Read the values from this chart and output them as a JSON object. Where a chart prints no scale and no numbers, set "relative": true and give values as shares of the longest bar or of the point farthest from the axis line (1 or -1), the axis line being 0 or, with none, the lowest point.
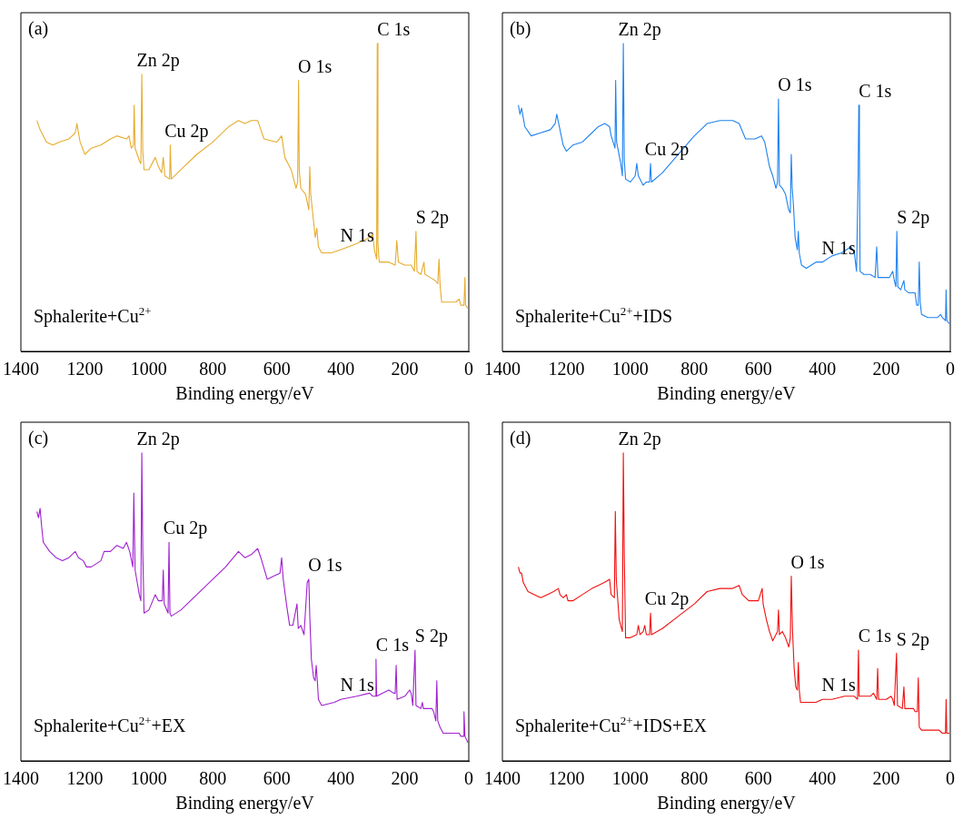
{
  "chart_data": [
    {
      "type": "line",
      "title": "(a)",
      "xlabel": "Binding energy/eV",
      "relative": true,
      "xlim": [
        1400,
        0
      ],
      "xticks": [
        1400,
        1200,
        1000,
        800,
        600,
        400,
        200,
        0
      ],
      "grid": false,
      "legend": false,
      "tick_labels": "x",
      "marker": "none",
      "line_style": "solid",
      "annotations": [
        {
          "text": "Zn 2p",
          "x": 1022,
          "y": 0.9
        },
        {
          "text": "Cu 2p",
          "x": 933,
          "y": 0.67
        },
        {
          "text": "O 1s",
          "x": 532,
          "y": 0.88
        },
        {
          "text": "C 1s",
          "x": 286,
          "y": 1.0
        },
        {
          "text": "N 1s",
          "x": 400,
          "y": 0.33
        },
        {
          "text": "S 2p",
          "x": 165,
          "y": 0.39
        },
        "Sphalerite+Cu$^{2+}$"
      ],
      "series": [
        {
          "color": "#e6ac2e",
          "x": [
            1350,
            1340,
            1320,
            1300,
            1280,
            1250,
            1230,
            1225,
            1215,
            1200,
            1180,
            1150,
            1120,
            1100,
            1070,
            1062,
            1055,
            1048,
            1046,
            1043,
            1030,
            1025,
            1022,
            1019,
            1015,
            1000,
            980,
            970,
            960,
            955,
            950,
            935,
            933,
            930,
            900,
            850,
            800,
            750,
            720,
            700,
            680,
            660,
            640,
            600,
            585,
            575,
            555,
            540,
            535,
            532,
            530,
            525,
            510,
            500,
            497,
            494,
            488,
            480,
            475,
            470,
            460,
            430,
            400,
            350,
            310,
            300,
            295,
            288,
            286,
            284,
            280,
            250,
            230,
            225,
            220,
            200,
            180,
            170,
            165,
            162,
            150,
            140,
            137,
            120,
            105,
            97,
            93,
            90,
            85,
            60,
            40,
            30,
            25,
            15,
            12,
            10,
            3
          ],
          "values": [
            0.75,
            0.72,
            0.68,
            0.67,
            0.68,
            0.69,
            0.71,
            0.74,
            0.68,
            0.64,
            0.66,
            0.67,
            0.69,
            0.7,
            0.69,
            0.7,
            0.66,
            0.67,
            0.8,
            0.66,
            0.62,
            0.61,
            0.9,
            0.65,
            0.59,
            0.59,
            0.63,
            0.6,
            0.58,
            0.63,
            0.57,
            0.56,
            0.67,
            0.56,
            0.59,
            0.64,
            0.68,
            0.73,
            0.75,
            0.74,
            0.75,
            0.75,
            0.69,
            0.68,
            0.7,
            0.63,
            0.59,
            0.53,
            0.55,
            0.88,
            0.59,
            0.53,
            0.51,
            0.46,
            0.6,
            0.51,
            0.45,
            0.37,
            0.4,
            0.34,
            0.32,
            0.32,
            0.33,
            0.35,
            0.37,
            0.38,
            0.33,
            0.3,
            1.0,
            0.35,
            0.29,
            0.29,
            0.28,
            0.36,
            0.29,
            0.28,
            0.28,
            0.26,
            0.39,
            0.26,
            0.25,
            0.29,
            0.25,
            0.24,
            0.23,
            0.22,
            0.3,
            0.22,
            0.16,
            0.16,
            0.16,
            0.17,
            0.15,
            0.15,
            0.24,
            0.15,
            0.14
          ]
        }
      ]
    },
    {
      "type": "line",
      "title": "(b)",
      "xlabel": "Binding energy/eV",
      "relative": true,
      "xlim": [
        1400,
        0
      ],
      "xticks": [
        1400,
        1200,
        1000,
        800,
        600,
        400,
        200,
        0
      ],
      "grid": false,
      "legend": false,
      "tick_labels": "x",
      "marker": "none",
      "line_style": "solid",
      "annotations": [
        {
          "text": "Zn 2p",
          "x": 1022,
          "y": 1.0
        },
        {
          "text": "Cu 2p",
          "x": 937,
          "y": 0.61
        },
        {
          "text": "O 1s",
          "x": 537,
          "y": 0.82
        },
        {
          "text": "C 1s",
          "x": 286,
          "y": 0.8
        },
        {
          "text": "N 1s",
          "x": 400,
          "y": 0.29
        },
        {
          "text": "S 2p",
          "x": 167,
          "y": 0.39
        },
        "Sphalerite+Cu$^{2+}$+IDS"
      ],
      "series": [
        {
          "color": "#1e82f0",
          "x": [
            1350,
            1345,
            1340,
            1330,
            1310,
            1280,
            1250,
            1235,
            1230,
            1220,
            1210,
            1200,
            1180,
            1150,
            1120,
            1100,
            1080,
            1065,
            1060,
            1048,
            1046,
            1043,
            1030,
            1025,
            1022,
            1019,
            1015,
            1000,
            985,
            980,
            975,
            960,
            950,
            940,
            937,
            934,
            900,
            850,
            800,
            760,
            720,
            680,
            660,
            640,
            610,
            590,
            580,
            565,
            555,
            545,
            540,
            537,
            534,
            525,
            515,
            505,
            500,
            497,
            494,
            490,
            485,
            478,
            475,
            472,
            465,
            450,
            420,
            400,
            370,
            340,
            310,
            300,
            293,
            288,
            286,
            284,
            282,
            270,
            250,
            235,
            230,
            226,
            210,
            190,
            180,
            175,
            170,
            167,
            164,
            155,
            145,
            142,
            130,
            110,
            105,
            100,
            97,
            94,
            90,
            70,
            40,
            30,
            25,
            15,
            13,
            11,
            3
          ],
          "values": [
            0.8,
            0.77,
            0.79,
            0.73,
            0.7,
            0.71,
            0.72,
            0.74,
            0.77,
            0.72,
            0.67,
            0.65,
            0.67,
            0.68,
            0.71,
            0.73,
            0.74,
            0.73,
            0.7,
            0.66,
            0.88,
            0.68,
            0.61,
            0.57,
            1.0,
            0.62,
            0.56,
            0.55,
            0.57,
            0.61,
            0.57,
            0.54,
            0.55,
            0.55,
            0.61,
            0.55,
            0.58,
            0.64,
            0.7,
            0.74,
            0.75,
            0.75,
            0.74,
            0.69,
            0.69,
            0.7,
            0.68,
            0.6,
            0.57,
            0.53,
            0.55,
            0.82,
            0.54,
            0.53,
            0.51,
            0.46,
            0.45,
            0.64,
            0.53,
            0.47,
            0.37,
            0.33,
            0.39,
            0.32,
            0.28,
            0.27,
            0.29,
            0.29,
            0.31,
            0.32,
            0.34,
            0.32,
            0.26,
            0.57,
            0.8,
            0.67,
            0.26,
            0.25,
            0.25,
            0.24,
            0.34,
            0.24,
            0.24,
            0.24,
            0.26,
            0.23,
            0.21,
            0.39,
            0.21,
            0.2,
            0.23,
            0.2,
            0.19,
            0.19,
            0.15,
            0.15,
            0.29,
            0.16,
            0.12,
            0.11,
            0.11,
            0.12,
            0.11,
            0.1,
            0.2,
            0.1,
            0.09
          ]
        }
      ]
    },
    {
      "type": "line",
      "title": "(c)",
      "xlabel": "Binding energy/eV",
      "relative": true,
      "xlim": [
        1400,
        0
      ],
      "xticks": [
        1400,
        1200,
        1000,
        800,
        600,
        400,
        200,
        0
      ],
      "grid": false,
      "legend": false,
      "tick_labels": "x",
      "marker": "none",
      "line_style": "solid",
      "annotations": [
        {
          "text": "Zn 2p",
          "x": 1022,
          "y": 1.0
        },
        {
          "text": "Cu 2p",
          "x": 937,
          "y": 0.71
        },
        {
          "text": "O 1s",
          "x": 500,
          "y": 0.59
        },
        {
          "text": "C 1s",
          "x": 290,
          "y": 0.33
        },
        {
          "text": "N 1s",
          "x": 400,
          "y": 0.2
        },
        {
          "text": "S 2p",
          "x": 168,
          "y": 0.36
        },
        "Sphalerite+Cu$^{2+}$+EX"
      ],
      "series": [
        {
          "color": "#a020d0",
          "x": [
            1350,
            1345,
            1340,
            1335,
            1330,
            1310,
            1290,
            1270,
            1250,
            1230,
            1220,
            1205,
            1195,
            1180,
            1150,
            1140,
            1120,
            1100,
            1080,
            1070,
            1060,
            1050,
            1047,
            1043,
            1030,
            1025,
            1022,
            1019,
            1015,
            1000,
            980,
            970,
            958,
            955,
            952,
            940,
            937,
            934,
            930,
            900,
            850,
            800,
            760,
            720,
            700,
            680,
            660,
            650,
            630,
            610,
            590,
            585,
            580,
            570,
            560,
            550,
            537,
            533,
            525,
            515,
            505,
            500,
            497,
            492,
            485,
            480,
            477,
            474,
            470,
            460,
            420,
            400,
            350,
            310,
            300,
            292,
            290,
            288,
            270,
            250,
            235,
            230,
            227,
            224,
            200,
            185,
            180,
            175,
            168,
            165,
            150,
            145,
            142,
            130,
            115,
            110,
            103,
            100,
            97,
            90,
            80,
            60,
            40,
            30,
            25,
            17,
            15,
            12,
            3
          ],
          "values": [
            0.81,
            0.79,
            0.82,
            0.76,
            0.71,
            0.68,
            0.66,
            0.65,
            0.66,
            0.68,
            0.66,
            0.65,
            0.63,
            0.63,
            0.65,
            0.68,
            0.68,
            0.7,
            0.69,
            0.71,
            0.68,
            0.63,
            0.87,
            0.62,
            0.54,
            0.52,
            1.0,
            0.68,
            0.48,
            0.49,
            0.54,
            0.52,
            0.52,
            0.62,
            0.51,
            0.48,
            0.71,
            0.48,
            0.47,
            0.49,
            0.54,
            0.59,
            0.63,
            0.68,
            0.66,
            0.67,
            0.69,
            0.66,
            0.59,
            0.6,
            0.61,
            0.66,
            0.59,
            0.51,
            0.44,
            0.44,
            0.51,
            0.43,
            0.44,
            0.41,
            0.58,
            0.59,
            0.47,
            0.33,
            0.27,
            0.26,
            0.31,
            0.27,
            0.2,
            0.18,
            0.19,
            0.2,
            0.21,
            0.22,
            0.21,
            0.21,
            0.33,
            0.21,
            0.22,
            0.23,
            0.22,
            0.22,
            0.31,
            0.2,
            0.21,
            0.23,
            0.22,
            0.18,
            0.36,
            0.18,
            0.17,
            0.19,
            0.17,
            0.17,
            0.17,
            0.16,
            0.13,
            0.26,
            0.13,
            0.11,
            0.09,
            0.09,
            0.09,
            0.09,
            0.08,
            0.08,
            0.16,
            0.08,
            0.06
          ]
        }
      ]
    },
    {
      "type": "line",
      "title": "(d)",
      "xlabel": "Binding energy/eV",
      "relative": true,
      "xlim": [
        1400,
        0
      ],
      "xticks": [
        1400,
        1200,
        1000,
        800,
        600,
        400,
        200,
        0
      ],
      "grid": false,
      "legend": false,
      "tick_labels": "x",
      "marker": "none",
      "line_style": "solid",
      "annotations": [
        {
          "text": "Zn 2p",
          "x": 1022,
          "y": 1.0
        },
        {
          "text": "Cu 2p",
          "x": 937,
          "y": 0.48
        },
        {
          "text": "O 1s",
          "x": 497,
          "y": 0.6
        },
        {
          "text": "C 1s",
          "x": 287,
          "y": 0.36
        },
        {
          "text": "N 1s",
          "x": 400,
          "y": 0.2
        },
        {
          "text": "S 2p",
          "x": 168,
          "y": 0.35
        },
        "Sphalerite+Cu$^{2+}$+IDS+EX"
      ],
      "series": [
        {
          "color": "#f01010",
          "x": [
            1350,
            1345,
            1340,
            1335,
            1320,
            1300,
            1280,
            1260,
            1240,
            1225,
            1220,
            1210,
            1200,
            1195,
            1180,
            1150,
            1120,
            1100,
            1080,
            1065,
            1060,
            1050,
            1047,
            1044,
            1035,
            1025,
            1022,
            1019,
            1015,
            1000,
            980,
            975,
            970,
            960,
            955,
            950,
            940,
            937,
            934,
            900,
            850,
            800,
            760,
            720,
            680,
            660,
            650,
            630,
            600,
            588,
            585,
            575,
            565,
            555,
            540,
            537,
            534,
            525,
            515,
            505,
            500,
            497,
            493,
            488,
            483,
            478,
            475,
            472,
            468,
            450,
            420,
            400,
            370,
            330,
            300,
            290,
            287,
            285,
            270,
            250,
            240,
            230,
            227,
            224,
            200,
            185,
            180,
            175,
            168,
            165,
            150,
            145,
            142,
            130,
            115,
            110,
            103,
            100,
            97,
            90,
            70,
            50,
            35,
            25,
            15,
            13,
            11,
            3
          ],
          "values": [
            0.63,
            0.61,
            0.61,
            0.58,
            0.55,
            0.54,
            0.53,
            0.54,
            0.55,
            0.56,
            0.54,
            0.53,
            0.54,
            0.52,
            0.52,
            0.54,
            0.56,
            0.57,
            0.58,
            0.59,
            0.54,
            0.53,
            0.81,
            0.59,
            0.46,
            0.42,
            1.0,
            0.67,
            0.4,
            0.4,
            0.41,
            0.44,
            0.41,
            0.42,
            0.44,
            0.41,
            0.41,
            0.48,
            0.41,
            0.43,
            0.47,
            0.51,
            0.55,
            0.56,
            0.56,
            0.57,
            0.54,
            0.52,
            0.52,
            0.56,
            0.51,
            0.46,
            0.42,
            0.39,
            0.42,
            0.49,
            0.41,
            0.42,
            0.4,
            0.37,
            0.4,
            0.6,
            0.42,
            0.3,
            0.24,
            0.23,
            0.32,
            0.23,
            0.19,
            0.19,
            0.19,
            0.2,
            0.2,
            0.21,
            0.21,
            0.2,
            0.36,
            0.21,
            0.21,
            0.21,
            0.22,
            0.2,
            0.3,
            0.2,
            0.2,
            0.21,
            0.2,
            0.18,
            0.35,
            0.18,
            0.17,
            0.24,
            0.17,
            0.17,
            0.17,
            0.16,
            0.16,
            0.27,
            0.11,
            0.1,
            0.1,
            0.1,
            0.1,
            0.09,
            0.09,
            0.2,
            0.09,
            0.09
          ]
        }
      ]
    }
  ]
}
